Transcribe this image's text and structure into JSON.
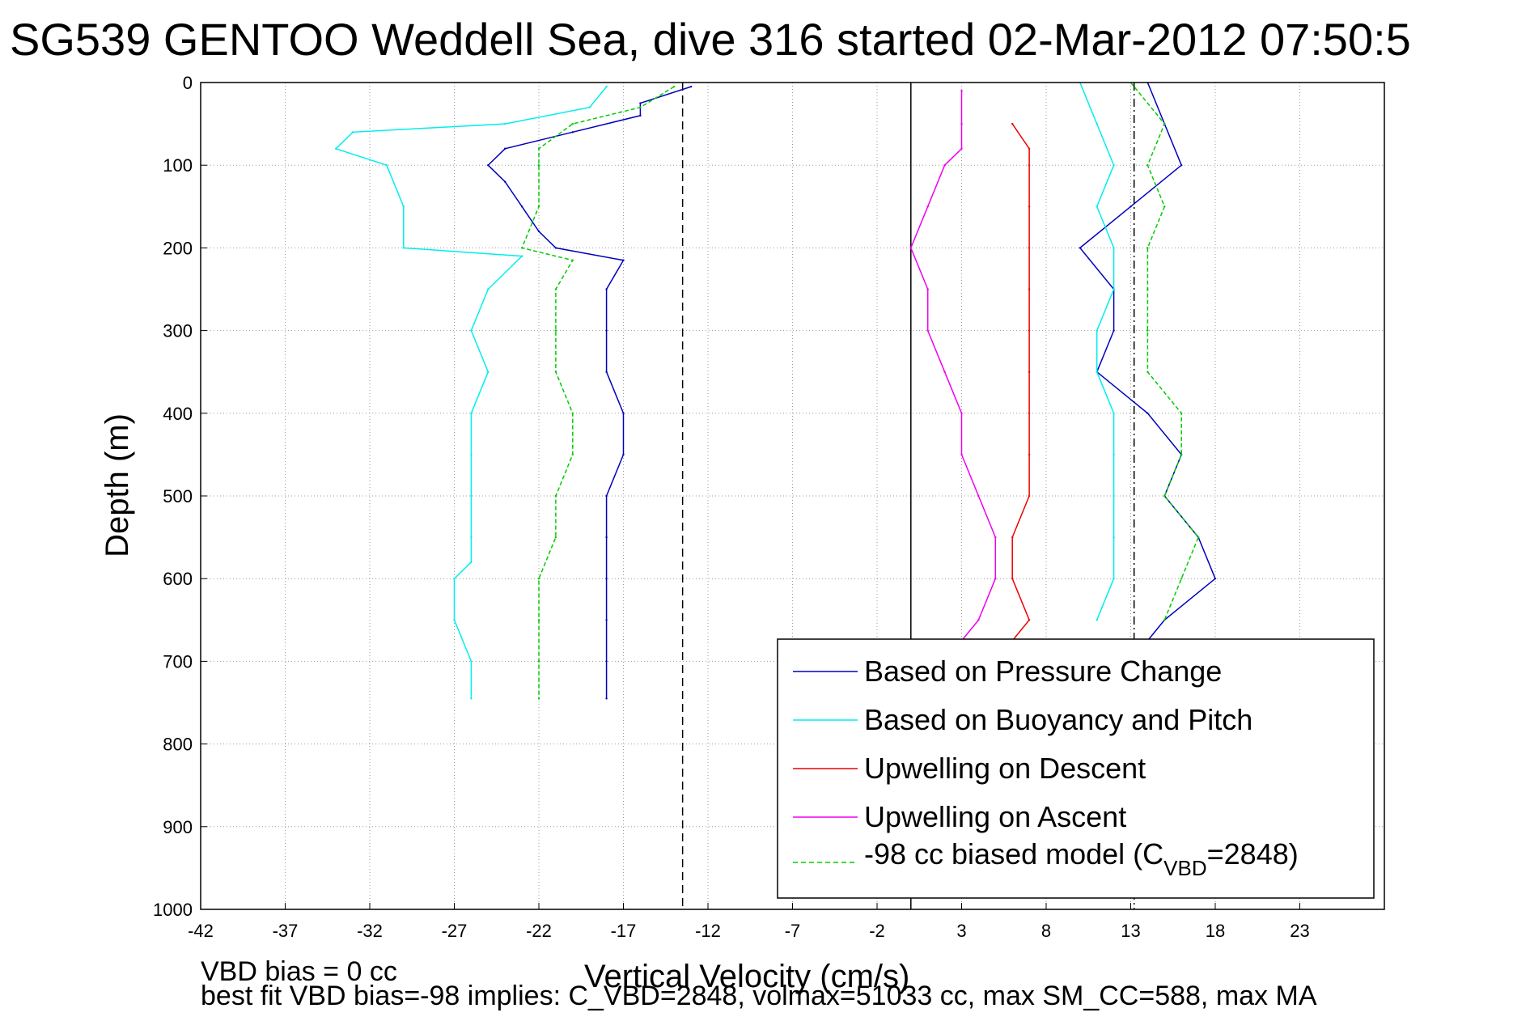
{
  "chart_data": {
    "type": "line",
    "title": "SG539 GENTOO Weddell Sea, dive 316 started 02-Mar-2012 07:50:5",
    "xlabel": "Vertical Velocity (cm/s)",
    "ylabel": "Depth (m)",
    "xlim": [
      -42,
      28
    ],
    "ylim": [
      0,
      1000
    ],
    "y_reversed": true,
    "x_ticks": [
      -42,
      -37,
      -32,
      -27,
      -22,
      -17,
      -12,
      -7,
      -2,
      3,
      8,
      13,
      18,
      23
    ],
    "x_tick_labels": [
      "-42",
      "-37",
      "-32",
      "-27",
      "-22",
      "-17",
      "-12",
      "-7",
      "-2",
      "3",
      "8",
      "13",
      "18",
      "23"
    ],
    "y_ticks": [
      0,
      100,
      200,
      300,
      400,
      500,
      600,
      700,
      800,
      900,
      1000
    ],
    "y_tick_labels": [
      "0",
      "100",
      "200",
      "300",
      "400",
      "500",
      "600",
      "700",
      "800",
      "900",
      "1000"
    ],
    "grid": true,
    "legend_position": "bottom-right",
    "vertical_lines": [
      {
        "x": -13.5,
        "style": "dashed",
        "color": "#000000"
      },
      {
        "x": 0,
        "style": "solid",
        "color": "#000000"
      },
      {
        "x": 13.2,
        "style": "dashdot",
        "color": "#000000"
      }
    ],
    "series": [
      {
        "name": "Based on Pressure Change",
        "color": "#0000bb",
        "style": "solid",
        "depth": [
          5,
          25,
          40,
          60,
          80,
          100,
          120,
          150,
          180,
          200,
          215,
          250,
          300,
          350,
          400,
          450,
          500,
          550,
          600,
          650,
          700,
          745
        ],
        "values": [
          -13,
          -16,
          -16,
          -20,
          -24,
          -25,
          -24,
          -23,
          -22,
          -21,
          -17,
          -18,
          -18,
          -18,
          -17,
          -17,
          -18,
          -18,
          -18,
          -18,
          -18,
          -18
        ]
      },
      {
        "name": "Based on Buoyancy and Pitch",
        "color": "#00eeee",
        "style": "solid",
        "depth": [
          5,
          30,
          50,
          60,
          80,
          100,
          150,
          200,
          210,
          250,
          300,
          350,
          400,
          450,
          500,
          550,
          580,
          600,
          650,
          700,
          745
        ],
        "values": [
          -18,
          -19,
          -24,
          -33,
          -34,
          -31,
          -30,
          -30,
          -23,
          -25,
          -26,
          -25,
          -26,
          -26,
          -26,
          -26,
          -26,
          -27,
          -27,
          -26,
          -26
        ]
      },
      {
        "name": "Upwelling on Descent",
        "color": "#ee0000",
        "style": "solid",
        "depth": [
          50,
          80,
          100,
          150,
          200,
          250,
          300,
          350,
          400,
          450,
          500,
          550,
          600,
          650,
          675
        ],
        "values": [
          6,
          7,
          7,
          7,
          7,
          7,
          7,
          7,
          7,
          7,
          7,
          6,
          6,
          7,
          6
        ]
      },
      {
        "name": "Upwelling on Ascent",
        "color": "#ee00ee",
        "style": "solid",
        "depth": [
          10,
          50,
          80,
          100,
          150,
          200,
          250,
          300,
          350,
          400,
          450,
          500,
          550,
          600,
          650,
          675
        ],
        "values": [
          3,
          3,
          3,
          2,
          1,
          0,
          1,
          1,
          2,
          3,
          3,
          4,
          5,
          5,
          4,
          3
        ]
      },
      {
        "name": "-98 cc biased model (C_VBD=2848)",
        "color": "#00cc00",
        "style": "dashed",
        "depth": [
          5,
          30,
          50,
          80,
          100,
          150,
          200,
          215,
          250,
          300,
          350,
          400,
          450,
          500,
          550,
          600,
          650,
          700,
          745
        ],
        "values": [
          -14,
          -16,
          -20,
          -22,
          -22,
          -22,
          -23,
          -20,
          -21,
          -21,
          -21,
          -20,
          -20,
          -21,
          -21,
          -22,
          -22,
          -22,
          -22
        ]
      },
      {
        "name": "",
        "color": "#0000bb",
        "style": "solid",
        "depth": [
          0,
          50,
          100,
          150,
          200,
          250,
          300,
          350,
          400,
          450,
          500,
          550,
          600,
          650,
          675
        ],
        "values": [
          14,
          15,
          16,
          13,
          10,
          12,
          12,
          11,
          14,
          16,
          15,
          17,
          18,
          15,
          14
        ]
      },
      {
        "name": "",
        "color": "#00eeee",
        "style": "solid",
        "depth": [
          0,
          50,
          100,
          150,
          200,
          250,
          300,
          350,
          400,
          450,
          500,
          550,
          600,
          650
        ],
        "values": [
          10,
          11,
          12,
          11,
          12,
          12,
          11,
          11,
          12,
          12,
          12,
          12,
          12,
          11
        ]
      },
      {
        "name": "",
        "color": "#00cc00",
        "style": "dashed",
        "depth": [
          0,
          50,
          100,
          150,
          200,
          250,
          300,
          350,
          400,
          450,
          500,
          550,
          600,
          650
        ],
        "values": [
          13,
          15,
          14,
          15,
          14,
          14,
          14,
          14,
          16,
          16,
          15,
          17,
          16,
          15
        ]
      }
    ]
  },
  "legend": {
    "entries": [
      {
        "label": "Based on Pressure Change",
        "color": "#0000bb",
        "dashed": false
      },
      {
        "label": "Based on Buoyancy and Pitch",
        "color": "#00eeee",
        "dashed": false
      },
      {
        "label": "Upwelling on Descent",
        "color": "#ee0000",
        "dashed": false
      },
      {
        "label": "Upwelling on Ascent",
        "color": "#ee00ee",
        "dashed": false
      }
    ],
    "model_prefix": "-98 cc biased model (C",
    "model_sub": "VBD",
    "model_suffix": "=2848)",
    "model_color": "#00cc00"
  },
  "footer": {
    "line1": "VBD bias = 0 cc",
    "line2": "best fit VBD bias=-98 implies: C_VBD=2848, volmax=51033 cc, max SM_CC=588, max MA"
  }
}
